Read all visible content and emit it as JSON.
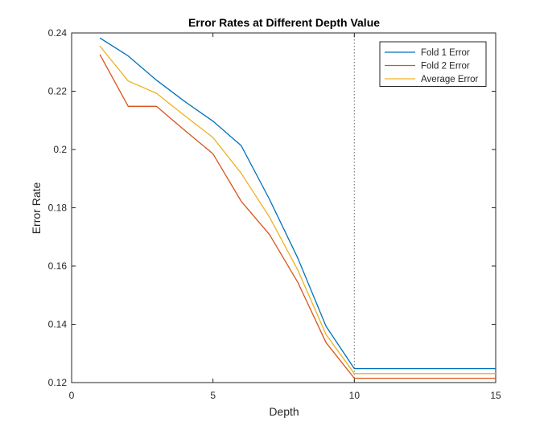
{
  "chart_data": {
    "type": "line",
    "title": "Error Rates at Different Depth Value",
    "xlabel": "Depth",
    "ylabel": "Error Rate",
    "xlim": [
      0,
      15
    ],
    "ylim": [
      0.12,
      0.24
    ],
    "xticks": [
      0,
      5,
      10,
      15
    ],
    "yticks": [
      0.12,
      0.14,
      0.16,
      0.18,
      0.2,
      0.22,
      0.24
    ],
    "xtick_labels": [
      "0",
      "5",
      "10",
      "15"
    ],
    "ytick_labels": [
      "0.12",
      "0.14",
      "0.16",
      "0.18",
      "0.2",
      "0.22",
      "0.24"
    ],
    "grid": false,
    "legend_position": "top-right",
    "x": [
      1,
      2,
      3,
      4,
      5,
      6,
      7,
      8,
      9,
      10,
      11,
      12,
      13,
      14,
      15
    ],
    "series": [
      {
        "name": "Fold 1 Error",
        "color": "#0072BD",
        "values": [
          0.2383,
          0.2321,
          0.2238,
          0.2165,
          0.2097,
          0.2013,
          0.1829,
          0.1627,
          0.1393,
          0.1248,
          0.1248,
          0.1248,
          0.1248,
          0.1248,
          0.1248
        ]
      },
      {
        "name": "Fold 2 Error",
        "color": "#D95319",
        "values": [
          0.2326,
          0.2148,
          0.2148,
          0.2066,
          0.1985,
          0.1822,
          0.1708,
          0.1544,
          0.1337,
          0.1215,
          0.1215,
          0.1215,
          0.1215,
          0.1215,
          0.1215
        ]
      },
      {
        "name": "Average Error",
        "color": "#EDB120",
        "values": [
          0.2355,
          0.2235,
          0.2193,
          0.2116,
          0.2041,
          0.1918,
          0.1768,
          0.1586,
          0.1365,
          0.1231,
          0.1231,
          0.1231,
          0.1231,
          0.1231,
          0.1231
        ]
      }
    ],
    "annotations": [
      {
        "type": "vertical-dotted-line",
        "x": 10,
        "color": "#808080"
      }
    ]
  }
}
